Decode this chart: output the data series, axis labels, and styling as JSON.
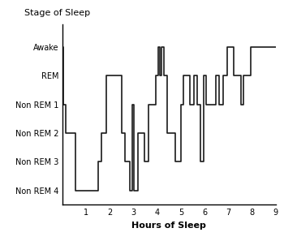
{
  "stage_label": "Stage of Sleep",
  "xlabel": "Hours of Sleep",
  "ytick_labels": [
    "Awake",
    "REM",
    "Non REM 1",
    "Non REM 2",
    "Non REM 3",
    "Non REM 4"
  ],
  "ytick_values": [
    6,
    5,
    4,
    3,
    2,
    1
  ],
  "xlim": [
    0,
    9
  ],
  "ylim": [
    0.5,
    6.8
  ],
  "xticks": [
    1,
    2,
    3,
    4,
    5,
    6,
    7,
    8,
    9
  ],
  "line_color": "#1a1a1a",
  "line_width": 1.2,
  "bg_color": "#ffffff",
  "steps": [
    [
      0.0,
      6
    ],
    [
      0.05,
      6
    ],
    [
      0.05,
      4
    ],
    [
      0.12,
      4
    ],
    [
      0.12,
      3
    ],
    [
      0.55,
      3
    ],
    [
      0.55,
      1
    ],
    [
      1.5,
      1
    ],
    [
      1.5,
      2
    ],
    [
      1.65,
      2
    ],
    [
      1.65,
      3
    ],
    [
      1.85,
      3
    ],
    [
      1.85,
      5
    ],
    [
      2.5,
      5
    ],
    [
      2.5,
      3
    ],
    [
      2.65,
      3
    ],
    [
      2.65,
      2
    ],
    [
      2.85,
      2
    ],
    [
      2.85,
      1
    ],
    [
      2.95,
      1
    ],
    [
      2.95,
      4
    ],
    [
      3.02,
      4
    ],
    [
      3.02,
      1
    ],
    [
      3.2,
      1
    ],
    [
      3.2,
      3
    ],
    [
      3.45,
      3
    ],
    [
      3.45,
      2
    ],
    [
      3.65,
      2
    ],
    [
      3.65,
      4
    ],
    [
      3.95,
      4
    ],
    [
      3.95,
      5
    ],
    [
      4.05,
      5
    ],
    [
      4.05,
      6
    ],
    [
      4.12,
      6
    ],
    [
      4.12,
      5
    ],
    [
      4.18,
      5
    ],
    [
      4.18,
      6
    ],
    [
      4.3,
      6
    ],
    [
      4.3,
      5
    ],
    [
      4.42,
      5
    ],
    [
      4.42,
      3
    ],
    [
      4.75,
      3
    ],
    [
      4.75,
      2
    ],
    [
      5.0,
      2
    ],
    [
      5.0,
      4
    ],
    [
      5.12,
      4
    ],
    [
      5.12,
      5
    ],
    [
      5.38,
      5
    ],
    [
      5.38,
      4
    ],
    [
      5.55,
      4
    ],
    [
      5.55,
      5
    ],
    [
      5.68,
      5
    ],
    [
      5.68,
      4
    ],
    [
      5.82,
      4
    ],
    [
      5.82,
      2
    ],
    [
      5.95,
      2
    ],
    [
      5.95,
      5
    ],
    [
      6.08,
      5
    ],
    [
      6.08,
      4
    ],
    [
      6.48,
      4
    ],
    [
      6.48,
      5
    ],
    [
      6.6,
      5
    ],
    [
      6.6,
      4
    ],
    [
      6.78,
      4
    ],
    [
      6.78,
      5
    ],
    [
      6.95,
      5
    ],
    [
      6.95,
      6
    ],
    [
      7.25,
      6
    ],
    [
      7.25,
      5
    ],
    [
      7.55,
      5
    ],
    [
      7.55,
      4
    ],
    [
      7.65,
      4
    ],
    [
      7.65,
      5
    ],
    [
      7.95,
      5
    ],
    [
      7.95,
      6
    ],
    [
      9.0,
      6
    ]
  ]
}
